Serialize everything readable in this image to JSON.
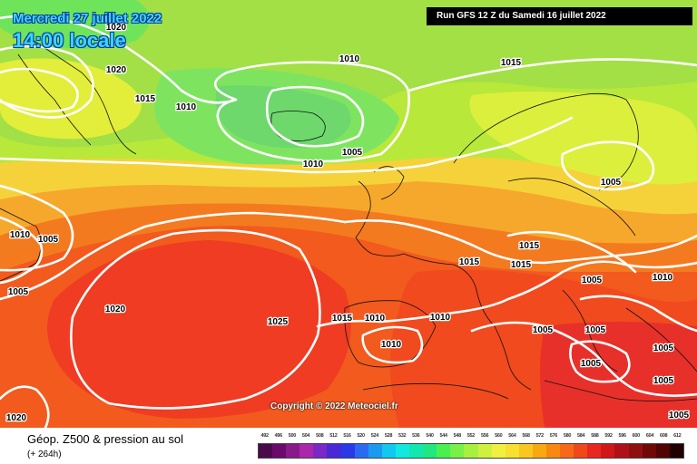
{
  "header": {
    "date": "Mercredi 27 juillet 2022",
    "time": "14:00 locale",
    "run": "Run GFS 12 Z du Samedi 16 juillet 2022"
  },
  "copyright": "Copyright © 2022 Meteociel.fr",
  "footer": {
    "title": "Géop. Z500 & pression au sol",
    "subtitle": "(+ 264h)"
  },
  "isobars": [
    {
      "label": "1020"
    },
    {
      "label": "1020"
    },
    {
      "label": "1015"
    },
    {
      "label": "1010"
    },
    {
      "label": "1010"
    },
    {
      "label": "1015"
    },
    {
      "label": "1005"
    },
    {
      "label": "1010"
    },
    {
      "label": "1005"
    },
    {
      "label": "1010"
    },
    {
      "label": "1005"
    },
    {
      "label": "1005"
    },
    {
      "label": "1020"
    },
    {
      "label": "1025"
    },
    {
      "label": "1015"
    },
    {
      "label": "1010"
    },
    {
      "label": "1010"
    },
    {
      "label": "1010"
    },
    {
      "label": "1015"
    },
    {
      "label": "1015"
    },
    {
      "label": "1015"
    },
    {
      "label": "1005"
    },
    {
      "label": "1010"
    },
    {
      "label": "1005"
    },
    {
      "label": "1005"
    },
    {
      "label": "1005"
    },
    {
      "label": "1005"
    },
    {
      "label": "1005"
    },
    {
      "label": "1020"
    },
    {
      "label": "1005"
    }
  ],
  "scale": {
    "labels": [
      "492",
      "496",
      "500",
      "504",
      "508",
      "512",
      "516",
      "520",
      "524",
      "528",
      "532",
      "536",
      "540",
      "544",
      "548",
      "552",
      "556",
      "560",
      "564",
      "568",
      "572",
      "576",
      "580",
      "584",
      "588",
      "592",
      "596",
      "600",
      "604",
      "608",
      "612"
    ],
    "colors": [
      "#4a0a4a",
      "#6a0a6a",
      "#8a1a8a",
      "#aa28aa",
      "#7a28c8",
      "#4a28d8",
      "#2a3ae8",
      "#2a6af0",
      "#1a9af0",
      "#10c8f0",
      "#10e8e0",
      "#10e8b0",
      "#20e880",
      "#48f050",
      "#78f048",
      "#a8f040",
      "#d0f040",
      "#f0f040",
      "#f8e030",
      "#f8c820",
      "#f8a810",
      "#f88810",
      "#f86818",
      "#f04818",
      "#e82820",
      "#d01818",
      "#b01018",
      "#901010",
      "#700808",
      "#500404",
      "#200000"
    ]
  }
}
